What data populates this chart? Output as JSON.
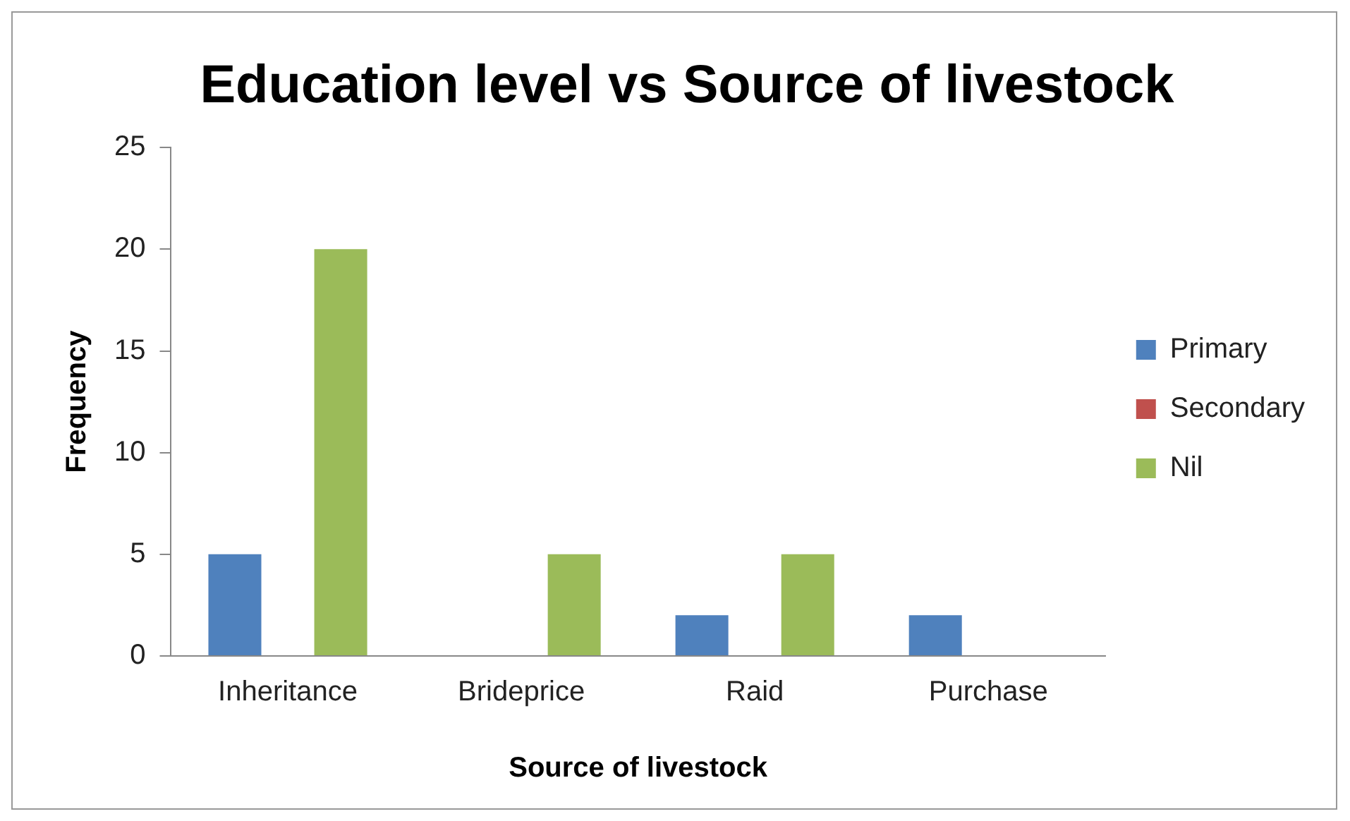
{
  "chart_data": {
    "type": "bar",
    "title": "Education level vs Source of livestock",
    "xlabel": "Source of livestock",
    "ylabel": "Frequency",
    "categories": [
      "Inheritance",
      "Brideprice",
      "Raid",
      "Purchase"
    ],
    "series": [
      {
        "name": "Primary",
        "color": "#4f81bd",
        "values": [
          5,
          0,
          2,
          2
        ]
      },
      {
        "name": "Secondary",
        "color": "#c0504d",
        "values": [
          0,
          0,
          0,
          0
        ]
      },
      {
        "name": "Nil",
        "color": "#9bbb59",
        "values": [
          20,
          5,
          5,
          0
        ]
      }
    ],
    "ylim": [
      0,
      25
    ],
    "yticks": [
      0,
      5,
      10,
      15,
      20,
      25
    ],
    "grid": false,
    "legend": "right"
  }
}
